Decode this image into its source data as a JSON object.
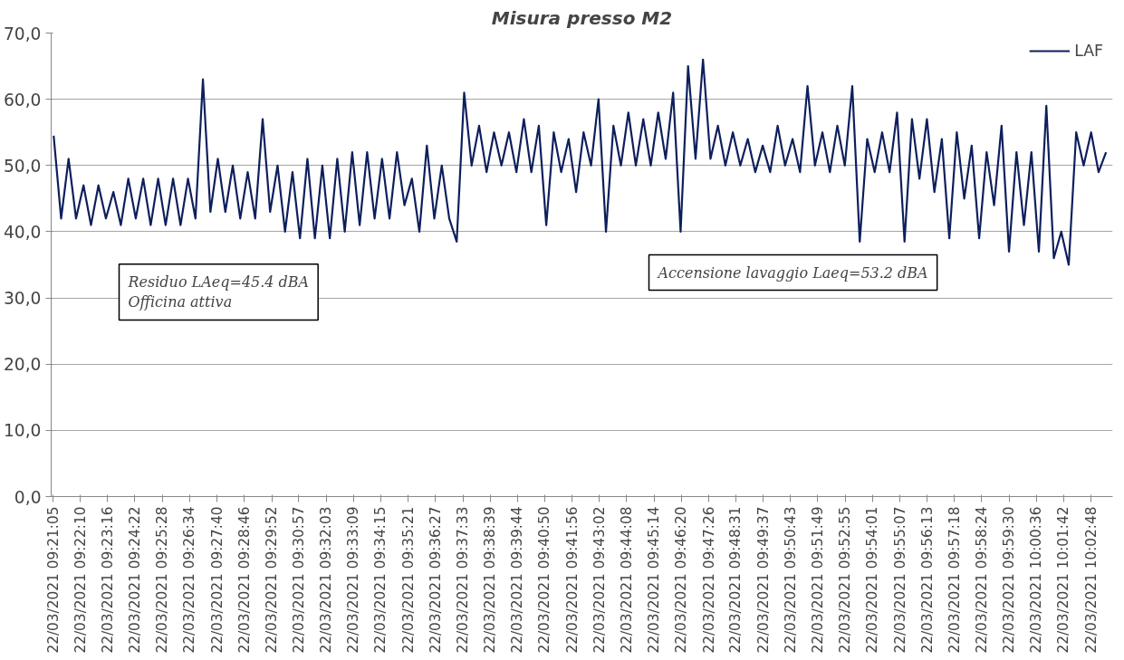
{
  "chart_data": {
    "type": "line",
    "title": "Misura presso M2",
    "x": [
      "2021-03-22T09:21:06",
      "2021-03-22T09:21:24",
      "2021-03-22T09:21:42",
      "2021-03-22T09:22:00",
      "2021-03-22T09:22:18",
      "2021-03-22T09:22:36",
      "2021-03-22T09:22:54",
      "2021-03-22T09:23:12",
      "2021-03-22T09:23:30",
      "2021-03-22T09:23:48",
      "2021-03-22T09:24:06",
      "2021-03-22T09:24:24",
      "2021-03-22T09:24:42",
      "2021-03-22T09:25:00",
      "2021-03-22T09:25:18",
      "2021-03-22T09:25:36",
      "2021-03-22T09:25:54",
      "2021-03-22T09:26:12",
      "2021-03-22T09:26:30",
      "2021-03-22T09:26:48",
      "2021-03-22T09:27:06",
      "2021-03-22T09:27:24",
      "2021-03-22T09:27:42",
      "2021-03-22T09:28:00",
      "2021-03-22T09:28:18",
      "2021-03-22T09:28:36",
      "2021-03-22T09:28:54",
      "2021-03-22T09:29:12",
      "2021-03-22T09:29:30",
      "2021-03-22T09:29:48",
      "2021-03-22T09:30:06",
      "2021-03-22T09:30:24",
      "2021-03-22T09:30:42",
      "2021-03-22T09:31:00",
      "2021-03-22T09:31:18",
      "2021-03-22T09:31:36",
      "2021-03-22T09:31:54",
      "2021-03-22T09:32:12",
      "2021-03-22T09:32:30",
      "2021-03-22T09:32:48",
      "2021-03-22T09:33:06",
      "2021-03-22T09:33:24",
      "2021-03-22T09:33:42",
      "2021-03-22T09:34:00",
      "2021-03-22T09:34:18",
      "2021-03-22T09:34:36",
      "2021-03-22T09:34:54",
      "2021-03-22T09:35:12",
      "2021-03-22T09:35:30",
      "2021-03-22T09:35:48",
      "2021-03-22T09:36:06",
      "2021-03-22T09:36:24",
      "2021-03-22T09:36:42",
      "2021-03-22T09:37:00",
      "2021-03-22T09:37:18",
      "2021-03-22T09:37:36",
      "2021-03-22T09:37:54",
      "2021-03-22T09:38:12",
      "2021-03-22T09:38:30",
      "2021-03-22T09:38:48",
      "2021-03-22T09:39:06",
      "2021-03-22T09:39:24",
      "2021-03-22T09:39:42",
      "2021-03-22T09:40:00",
      "2021-03-22T09:40:18",
      "2021-03-22T09:40:36",
      "2021-03-22T09:40:54",
      "2021-03-22T09:41:12",
      "2021-03-22T09:41:30",
      "2021-03-22T09:41:48",
      "2021-03-22T09:42:06",
      "2021-03-22T09:42:24",
      "2021-03-22T09:42:42",
      "2021-03-22T09:43:00",
      "2021-03-22T09:43:18",
      "2021-03-22T09:43:36",
      "2021-03-22T09:43:54",
      "2021-03-22T09:44:12",
      "2021-03-22T09:44:30",
      "2021-03-22T09:44:48",
      "2021-03-22T09:45:06",
      "2021-03-22T09:45:24",
      "2021-03-22T09:45:42",
      "2021-03-22T09:46:00",
      "2021-03-22T09:46:18",
      "2021-03-22T09:46:36",
      "2021-03-22T09:46:54",
      "2021-03-22T09:47:12",
      "2021-03-22T09:47:30",
      "2021-03-22T09:47:48",
      "2021-03-22T09:48:06",
      "2021-03-22T09:48:24",
      "2021-03-22T09:48:42",
      "2021-03-22T09:49:00",
      "2021-03-22T09:49:18",
      "2021-03-22T09:49:36",
      "2021-03-22T09:49:54",
      "2021-03-22T09:50:12",
      "2021-03-22T09:50:30",
      "2021-03-22T09:50:48",
      "2021-03-22T09:51:06",
      "2021-03-22T09:51:24",
      "2021-03-22T09:51:42",
      "2021-03-22T09:52:00",
      "2021-03-22T09:52:18",
      "2021-03-22T09:52:36",
      "2021-03-22T09:52:54",
      "2021-03-22T09:53:12",
      "2021-03-22T09:53:30",
      "2021-03-22T09:53:48",
      "2021-03-22T09:54:06",
      "2021-03-22T09:54:24",
      "2021-03-22T09:54:42",
      "2021-03-22T09:55:00",
      "2021-03-22T09:55:18",
      "2021-03-22T09:55:36",
      "2021-03-22T09:55:54",
      "2021-03-22T09:56:12",
      "2021-03-22T09:56:30",
      "2021-03-22T09:56:48",
      "2021-03-22T09:57:06",
      "2021-03-22T09:57:24",
      "2021-03-22T09:57:42",
      "2021-03-22T09:58:00",
      "2021-03-22T09:58:18",
      "2021-03-22T09:58:36",
      "2021-03-22T09:58:54",
      "2021-03-22T09:59:12",
      "2021-03-22T09:59:30",
      "2021-03-22T09:59:48",
      "2021-03-22T10:00:06",
      "2021-03-22T10:00:24",
      "2021-03-22T10:00:42",
      "2021-03-22T10:01:00",
      "2021-03-22T10:01:18",
      "2021-03-22T10:01:36",
      "2021-03-22T10:01:54",
      "2021-03-22T10:02:12",
      "2021-03-22T10:02:30",
      "2021-03-22T10:02:48",
      "2021-03-22T10:03:06",
      "2021-03-22T10:03:24"
    ],
    "series": [
      {
        "name": "LAF",
        "color": "#0d1f5c",
        "values": [
          54.5,
          42,
          51,
          42,
          47,
          41,
          47,
          42,
          46,
          41,
          48,
          42,
          48,
          41,
          48,
          41,
          48,
          41,
          48,
          42,
          63,
          43,
          51,
          43,
          50,
          42,
          49,
          42,
          57,
          43,
          50,
          40,
          49,
          39,
          51,
          39,
          50,
          39,
          51,
          40,
          52,
          41,
          52,
          42,
          51,
          42,
          52,
          44,
          48,
          40,
          53,
          42,
          50,
          42,
          38.5,
          61,
          50,
          56,
          49,
          55,
          50,
          55,
          49,
          57,
          49,
          56,
          41,
          55,
          49,
          54,
          46,
          55,
          50,
          60,
          40,
          56,
          50,
          58,
          50,
          57,
          50,
          58,
          51,
          61,
          40,
          65,
          51,
          66,
          51,
          56,
          50,
          55,
          50,
          54,
          49,
          53,
          49,
          56,
          50,
          54,
          49,
          62,
          50,
          55,
          49,
          56,
          50,
          62,
          38.5,
          54,
          49,
          55,
          49,
          58,
          38.5,
          57,
          48,
          57,
          46,
          54,
          39,
          55,
          45,
          53,
          39,
          52,
          44,
          56,
          37,
          52,
          41,
          52,
          37,
          59,
          36,
          40,
          35,
          55,
          50,
          55,
          49,
          52
        ]
      }
    ],
    "ylim": [
      0,
      70
    ],
    "yticks": [
      {
        "value": 0,
        "label": "0,0"
      },
      {
        "value": 10,
        "label": "10,0"
      },
      {
        "value": 20,
        "label": "20,0"
      },
      {
        "value": 30,
        "label": "30,0"
      },
      {
        "value": 40,
        "label": "40,0"
      },
      {
        "value": 50,
        "label": "50,0"
      },
      {
        "value": 60,
        "label": "60,0"
      },
      {
        "value": 70,
        "label": "70,0"
      }
    ],
    "xlim": [
      "2021-03-22T09:21:00",
      "2021-03-22T10:03:40"
    ],
    "xticks": [
      {
        "value": "2021-03-22T09:21:05",
        "label": "22/03/2021 09:21:05"
      },
      {
        "value": "2021-03-22T09:22:10",
        "label": "22/03/2021 09:22:10"
      },
      {
        "value": "2021-03-22T09:23:16",
        "label": "22/03/2021 09:23:16"
      },
      {
        "value": "2021-03-22T09:24:22",
        "label": "22/03/2021 09:24:22"
      },
      {
        "value": "2021-03-22T09:25:28",
        "label": "22/03/2021 09:25:28"
      },
      {
        "value": "2021-03-22T09:26:34",
        "label": "22/03/2021 09:26:34"
      },
      {
        "value": "2021-03-22T09:27:40",
        "label": "22/03/2021 09:27:40"
      },
      {
        "value": "2021-03-22T09:28:46",
        "label": "22/03/2021 09:28:46"
      },
      {
        "value": "2021-03-22T09:29:52",
        "label": "22/03/2021 09:29:52"
      },
      {
        "value": "2021-03-22T09:30:57",
        "label": "22/03/2021 09:30:57"
      },
      {
        "value": "2021-03-22T09:32:03",
        "label": "22/03/2021 09:32:03"
      },
      {
        "value": "2021-03-22T09:33:09",
        "label": "22/03/2021 09:33:09"
      },
      {
        "value": "2021-03-22T09:34:15",
        "label": "22/03/2021 09:34:15"
      },
      {
        "value": "2021-03-22T09:35:21",
        "label": "22/03/2021 09:35:21"
      },
      {
        "value": "2021-03-22T09:36:27",
        "label": "22/03/2021 09:36:27"
      },
      {
        "value": "2021-03-22T09:37:33",
        "label": "22/03/2021 09:37:33"
      },
      {
        "value": "2021-03-22T09:38:39",
        "label": "22/03/2021 09:38:39"
      },
      {
        "value": "2021-03-22T09:39:44",
        "label": "22/03/2021 09:39:44"
      },
      {
        "value": "2021-03-22T09:40:50",
        "label": "22/03/2021 09:40:50"
      },
      {
        "value": "2021-03-22T09:41:56",
        "label": "22/03/2021 09:41:56"
      },
      {
        "value": "2021-03-22T09:43:02",
        "label": "22/03/2021 09:43:02"
      },
      {
        "value": "2021-03-22T09:44:08",
        "label": "22/03/2021 09:44:08"
      },
      {
        "value": "2021-03-22T09:45:14",
        "label": "22/03/2021 09:45:14"
      },
      {
        "value": "2021-03-22T09:46:20",
        "label": "22/03/2021 09:46:20"
      },
      {
        "value": "2021-03-22T09:47:26",
        "label": "22/03/2021 09:47:26"
      },
      {
        "value": "2021-03-22T09:48:31",
        "label": "22/03/2021 09:48:31"
      },
      {
        "value": "2021-03-22T09:49:37",
        "label": "22/03/2021 09:49:37"
      },
      {
        "value": "2021-03-22T09:50:43",
        "label": "22/03/2021 09:50:43"
      },
      {
        "value": "2021-03-22T09:51:49",
        "label": "22/03/2021 09:51:49"
      },
      {
        "value": "2021-03-22T09:52:55",
        "label": "22/03/2021 09:52:55"
      },
      {
        "value": "2021-03-22T09:54:01",
        "label": "22/03/2021 09:54:01"
      },
      {
        "value": "2021-03-22T09:55:07",
        "label": "22/03/2021 09:55:07"
      },
      {
        "value": "2021-03-22T09:56:13",
        "label": "22/03/2021 09:56:13"
      },
      {
        "value": "2021-03-22T09:57:18",
        "label": "22/03/2021 09:57:18"
      },
      {
        "value": "2021-03-22T09:58:24",
        "label": "22/03/2021 09:58:24"
      },
      {
        "value": "2021-03-22T09:59:30",
        "label": "22/03/2021 09:59:30"
      },
      {
        "value": "2021-03-22T10:00:36",
        "label": "22/03/2021 10:00:36"
      },
      {
        "value": "2021-03-22T10:01:42",
        "label": "22/03/2021 10:01:42"
      },
      {
        "value": "2021-03-22T10:02:48",
        "label": "22/03/2021 10:02:48"
      }
    ],
    "grid": "y",
    "legend": "top right",
    "marker": "none",
    "line_style": "solid",
    "annotations": [
      "Residuo LAeq=45.4 dBA\nOfficina attiva",
      "Accensione lavaggio Laeq=53.2 dBA"
    ]
  }
}
